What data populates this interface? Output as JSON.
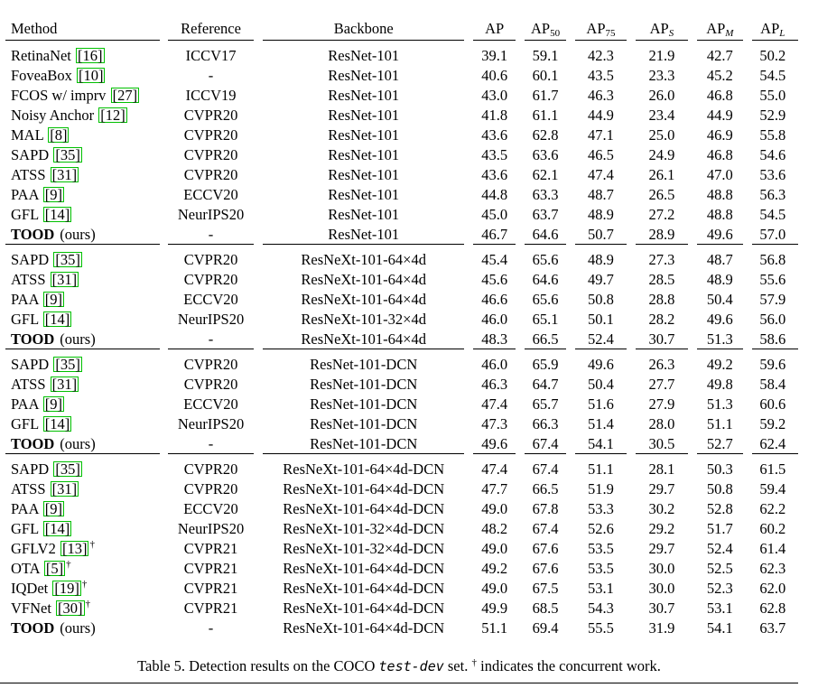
{
  "table": {
    "headers": {
      "method": "Method",
      "reference": "Reference",
      "backbone": "Backbone",
      "ap": "AP",
      "ap50_base": "AP",
      "ap50_sub": "50",
      "ap75_base": "AP",
      "ap75_sub": "75",
      "aps_base": "AP",
      "aps_sub": "S",
      "apm_base": "AP",
      "apm_sub": "M",
      "apl_base": "AP",
      "apl_sub": "L"
    },
    "groups": [
      {
        "rows": [
          {
            "method": "RetinaNet",
            "cite": "16",
            "dagger": false,
            "ref": "ICCV17",
            "backbone": "ResNet-101",
            "ap": "39.1",
            "ap50": "59.1",
            "ap75": "42.3",
            "aps": "21.9",
            "apm": "42.7",
            "apl": "50.2",
            "bold": false
          },
          {
            "method": "FoveaBox",
            "cite": "10",
            "dagger": false,
            "ref": "-",
            "backbone": "ResNet-101",
            "ap": "40.6",
            "ap50": "60.1",
            "ap75": "43.5",
            "aps": "23.3",
            "apm": "45.2",
            "apl": "54.5",
            "bold": false
          },
          {
            "method": "FCOS w/ imprv",
            "cite": "27",
            "dagger": false,
            "ref": "ICCV19",
            "backbone": "ResNet-101",
            "ap": "43.0",
            "ap50": "61.7",
            "ap75": "46.3",
            "aps": "26.0",
            "apm": "46.8",
            "apl": "55.0",
            "bold": false
          },
          {
            "method": "Noisy Anchor",
            "cite": "12",
            "dagger": false,
            "ref": "CVPR20",
            "backbone": "ResNet-101",
            "ap": "41.8",
            "ap50": "61.1",
            "ap75": "44.9",
            "aps": "23.4",
            "apm": "44.9",
            "apl": "52.9",
            "bold": false
          },
          {
            "method": "MAL",
            "cite": "8",
            "dagger": false,
            "ref": "CVPR20",
            "backbone": "ResNet-101",
            "ap": "43.6",
            "ap50": "62.8",
            "ap75": "47.1",
            "aps": "25.0",
            "apm": "46.9",
            "apl": "55.8",
            "bold": false
          },
          {
            "method": "SAPD",
            "cite": "35",
            "dagger": false,
            "ref": "CVPR20",
            "backbone": "ResNet-101",
            "ap": "43.5",
            "ap50": "63.6",
            "ap75": "46.5",
            "aps": "24.9",
            "apm": "46.8",
            "apl": "54.6",
            "bold": false
          },
          {
            "method": "ATSS",
            "cite": "31",
            "dagger": false,
            "ref": "CVPR20",
            "backbone": "ResNet-101",
            "ap": "43.6",
            "ap50": "62.1",
            "ap75": "47.4",
            "aps": "26.1",
            "apm": "47.0",
            "apl": "53.6",
            "bold": false
          },
          {
            "method": "PAA",
            "cite": "9",
            "dagger": false,
            "ref": "ECCV20",
            "backbone": "ResNet-101",
            "ap": "44.8",
            "ap50": "63.3",
            "ap75": "48.7",
            "aps": "26.5",
            "apm": "48.8",
            "apl": "56.3",
            "bold": false
          },
          {
            "method": "GFL",
            "cite": "14",
            "dagger": false,
            "ref": "NeurIPS20",
            "backbone": "ResNet-101",
            "ap": "45.0",
            "ap50": "63.7",
            "ap75": "48.9",
            "aps": "27.2",
            "apm": "48.8",
            "apl": "54.5",
            "bold": false
          },
          {
            "method": "TOOD",
            "ours": "(ours)",
            "cite": "",
            "dagger": false,
            "ref": "-",
            "backbone": "ResNet-101",
            "ap": "46.7",
            "ap50": "64.6",
            "ap75": "50.7",
            "aps": "28.9",
            "apm": "49.6",
            "apl": "57.0",
            "bold": true
          }
        ]
      },
      {
        "rows": [
          {
            "method": "SAPD",
            "cite": "35",
            "dagger": false,
            "ref": "CVPR20",
            "backbone": "ResNeXt-101-64×4d",
            "ap": "45.4",
            "ap50": "65.6",
            "ap75": "48.9",
            "aps": "27.3",
            "apm": "48.7",
            "apl": "56.8",
            "bold": false
          },
          {
            "method": "ATSS",
            "cite": "31",
            "dagger": false,
            "ref": "CVPR20",
            "backbone": "ResNeXt-101-64×4d",
            "ap": "45.6",
            "ap50": "64.6",
            "ap75": "49.7",
            "aps": "28.5",
            "apm": "48.9",
            "apl": "55.6",
            "bold": false
          },
          {
            "method": "PAA",
            "cite": "9",
            "dagger": false,
            "ref": "ECCV20",
            "backbone": "ResNeXt-101-64×4d",
            "ap": "46.6",
            "ap50": "65.6",
            "ap75": "50.8",
            "aps": "28.8",
            "apm": "50.4",
            "apl": "57.9",
            "bold": false
          },
          {
            "method": "GFL",
            "cite": "14",
            "dagger": false,
            "ref": "NeurIPS20",
            "backbone": "ResNeXt-101-32×4d",
            "ap": "46.0",
            "ap50": "65.1",
            "ap75": "50.1",
            "aps": "28.2",
            "apm": "49.6",
            "apl": "56.0",
            "bold": false
          },
          {
            "method": "TOOD",
            "ours": "(ours)",
            "cite": "",
            "dagger": false,
            "ref": "-",
            "backbone": "ResNeXt-101-64×4d",
            "ap": "48.3",
            "ap50": "66.5",
            "ap75": "52.4",
            "aps": "30.7",
            "apm": "51.3",
            "apl": "58.6",
            "bold": true
          }
        ]
      },
      {
        "rows": [
          {
            "method": "SAPD",
            "cite": "35",
            "dagger": false,
            "ref": "CVPR20",
            "backbone": "ResNet-101-DCN",
            "ap": "46.0",
            "ap50": "65.9",
            "ap75": "49.6",
            "aps": "26.3",
            "apm": "49.2",
            "apl": "59.6",
            "bold": false
          },
          {
            "method": "ATSS",
            "cite": "31",
            "dagger": false,
            "ref": "CVPR20",
            "backbone": "ResNet-101-DCN",
            "ap": "46.3",
            "ap50": "64.7",
            "ap75": "50.4",
            "aps": "27.7",
            "apm": "49.8",
            "apl": "58.4",
            "bold": false
          },
          {
            "method": "PAA",
            "cite": "9",
            "dagger": false,
            "ref": "ECCV20",
            "backbone": "ResNet-101-DCN",
            "ap": "47.4",
            "ap50": "65.7",
            "ap75": "51.6",
            "aps": "27.9",
            "apm": "51.3",
            "apl": "60.6",
            "bold": false
          },
          {
            "method": "GFL",
            "cite": "14",
            "dagger": false,
            "ref": "NeurIPS20",
            "backbone": "ResNet-101-DCN",
            "ap": "47.3",
            "ap50": "66.3",
            "ap75": "51.4",
            "aps": "28.0",
            "apm": "51.1",
            "apl": "59.2",
            "bold": false
          },
          {
            "method": "TOOD",
            "ours": "(ours)",
            "cite": "",
            "dagger": false,
            "ref": "-",
            "backbone": "ResNet-101-DCN",
            "ap": "49.6",
            "ap50": "67.4",
            "ap75": "54.1",
            "aps": "30.5",
            "apm": "52.7",
            "apl": "62.4",
            "bold": true
          }
        ]
      },
      {
        "rows": [
          {
            "method": "SAPD",
            "cite": "35",
            "dagger": false,
            "ref": "CVPR20",
            "backbone": "ResNeXt-101-64×4d-DCN",
            "ap": "47.4",
            "ap50": "67.4",
            "ap75": "51.1",
            "aps": "28.1",
            "apm": "50.3",
            "apl": "61.5",
            "bold": false
          },
          {
            "method": "ATSS",
            "cite": "31",
            "dagger": false,
            "ref": "CVPR20",
            "backbone": "ResNeXt-101-64×4d-DCN",
            "ap": "47.7",
            "ap50": "66.5",
            "ap75": "51.9",
            "aps": "29.7",
            "apm": "50.8",
            "apl": "59.4",
            "bold": false
          },
          {
            "method": "PAA",
            "cite": "9",
            "dagger": false,
            "ref": "ECCV20",
            "backbone": "ResNeXt-101-64×4d-DCN",
            "ap": "49.0",
            "ap50": "67.8",
            "ap75": "53.3",
            "aps": "30.2",
            "apm": "52.8",
            "apl": "62.2",
            "bold": false
          },
          {
            "method": "GFL",
            "cite": "14",
            "dagger": false,
            "ref": "NeurIPS20",
            "backbone": "ResNeXt-101-32×4d-DCN",
            "ap": "48.2",
            "ap50": "67.4",
            "ap75": "52.6",
            "aps": "29.2",
            "apm": "51.7",
            "apl": "60.2",
            "bold": false
          },
          {
            "method": "GFLV2",
            "cite": "13",
            "dagger": true,
            "ref": "CVPR21",
            "backbone": "ResNeXt-101-32×4d-DCN",
            "ap": "49.0",
            "ap50": "67.6",
            "ap75": "53.5",
            "aps": "29.7",
            "apm": "52.4",
            "apl": "61.4",
            "bold": false
          },
          {
            "method": "OTA",
            "cite": "5",
            "dagger": true,
            "ref": "CVPR21",
            "backbone": "ResNeXt-101-64×4d-DCN",
            "ap": "49.2",
            "ap50": "67.6",
            "ap75": "53.5",
            "aps": "30.0",
            "apm": "52.5",
            "apl": "62.3",
            "bold": false
          },
          {
            "method": "IQDet",
            "cite": "19",
            "dagger": true,
            "ref": "CVPR21",
            "backbone": "ResNeXt-101-64×4d-DCN",
            "ap": "49.0",
            "ap50": "67.5",
            "ap75": "53.1",
            "aps": "30.0",
            "apm": "52.3",
            "apl": "62.0",
            "bold": false
          },
          {
            "method": "VFNet",
            "cite": "30",
            "dagger": true,
            "ref": "CVPR21",
            "backbone": "ResNeXt-101-64×4d-DCN",
            "ap": "49.9",
            "ap50": "68.5",
            "ap75": "54.3",
            "aps": "30.7",
            "apm": "53.1",
            "apl": "62.8",
            "bold": false
          },
          {
            "method": "TOOD",
            "ours": "(ours)",
            "cite": "",
            "dagger": false,
            "ref": "-",
            "backbone": "ResNeXt-101-64×4d-DCN",
            "ap": "51.1",
            "ap50": "69.4",
            "ap75": "55.5",
            "aps": "31.9",
            "apm": "54.1",
            "apl": "63.7",
            "bold": true
          }
        ]
      }
    ]
  },
  "caption": {
    "prefix": "Table 5. Detection results on the COCO ",
    "mono": "test-dev",
    "middle": " set. ",
    "dagger": "†",
    "suffix": " indicates the concurrent work."
  },
  "dagger_symbol": "†",
  "cite_box_color": "#00c000"
}
